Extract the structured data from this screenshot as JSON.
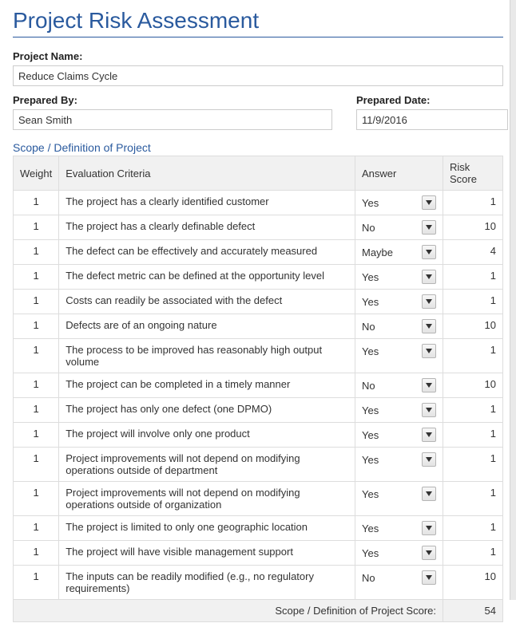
{
  "title": "Project Risk Assessment",
  "fields": {
    "projectName": {
      "label": "Project Name:",
      "value": "Reduce Claims Cycle"
    },
    "preparedBy": {
      "label": "Prepared By:",
      "value": "Sean Smith"
    },
    "preparedDate": {
      "label": "Prepared Date:",
      "value": "11/9/2016"
    }
  },
  "sectionTitle": "Scope / Definition of Project",
  "columns": {
    "weight": "Weight",
    "criteria": "Evaluation Criteria",
    "answer": "Answer",
    "score": "Risk Score"
  },
  "rows": [
    {
      "weight": "1",
      "criteria": "The project has a clearly identified customer",
      "answer": "Yes",
      "score": "1"
    },
    {
      "weight": "1",
      "criteria": "The project has a clearly definable defect",
      "answer": "No",
      "score": "10"
    },
    {
      "weight": "1",
      "criteria": "The defect can be effectively and accurately measured",
      "answer": "Maybe",
      "score": "4"
    },
    {
      "weight": "1",
      "criteria": "The defect metric can be defined at the opportunity level",
      "answer": "Yes",
      "score": "1"
    },
    {
      "weight": "1",
      "criteria": "Costs can readily be associated with the defect",
      "answer": "Yes",
      "score": "1"
    },
    {
      "weight": "1",
      "criteria": "Defects are of an ongoing nature",
      "answer": "No",
      "score": "10"
    },
    {
      "weight": "1",
      "criteria": "The process to be improved has reasonably high output volume",
      "answer": "Yes",
      "score": "1"
    },
    {
      "weight": "1",
      "criteria": "The project can be completed in a timely manner",
      "answer": "No",
      "score": "10"
    },
    {
      "weight": "1",
      "criteria": "The project has only one defect (one DPMO)",
      "answer": "Yes",
      "score": "1"
    },
    {
      "weight": "1",
      "criteria": "The project will involve only one product",
      "answer": "Yes",
      "score": "1"
    },
    {
      "weight": "1",
      "criteria": "Project improvements will not depend on modifying operations outside of department",
      "answer": "Yes",
      "score": "1"
    },
    {
      "weight": "1",
      "criteria": "Project improvements will not depend on modifying operations outside of organization",
      "answer": "Yes",
      "score": "1"
    },
    {
      "weight": "1",
      "criteria": "The project is limited to only one geographic location",
      "answer": "Yes",
      "score": "1"
    },
    {
      "weight": "1",
      "criteria": "The project will have visible management support",
      "answer": "Yes",
      "score": "1"
    },
    {
      "weight": "1",
      "criteria": "The inputs can be readily modified (e.g., no regulatory requirements)",
      "answer": "No",
      "score": "10"
    }
  ],
  "totals": {
    "label": "Scope / Definition of Project Score:",
    "value": "54"
  }
}
